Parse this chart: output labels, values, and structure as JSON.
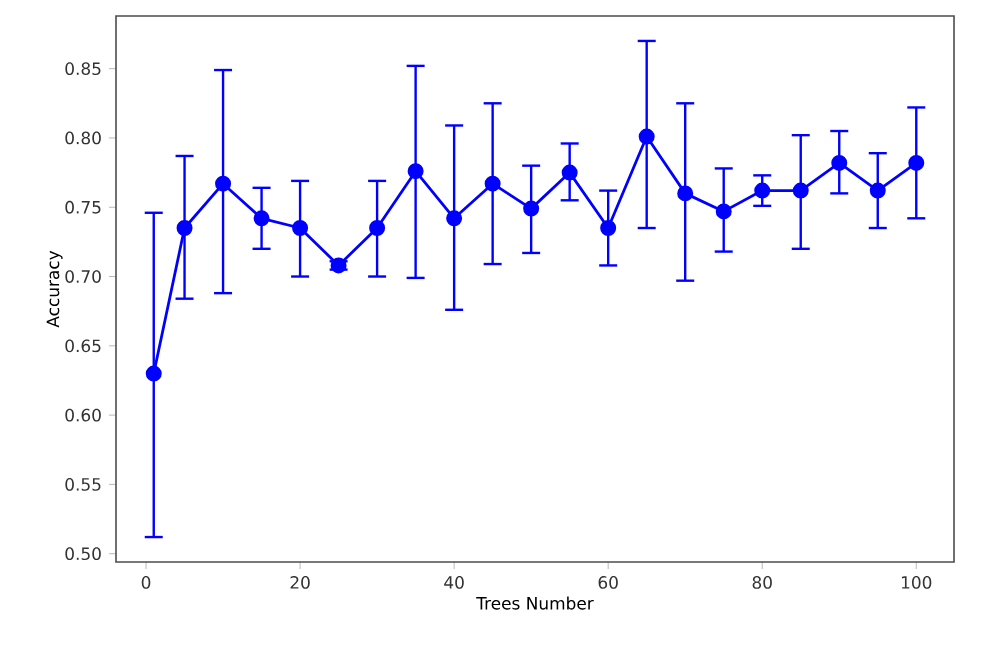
{
  "chart_data": {
    "type": "line",
    "xlabel": "Trees Number",
    "ylabel": "Accuracy",
    "x": [
      1,
      5,
      10,
      15,
      20,
      25,
      30,
      35,
      40,
      45,
      50,
      55,
      60,
      65,
      70,
      75,
      80,
      85,
      90,
      95,
      100
    ],
    "series": [
      {
        "color": "#0000ff",
        "values": [
          0.63,
          0.735,
          0.767,
          0.742,
          0.735,
          0.708,
          0.735,
          0.776,
          0.742,
          0.767,
          0.749,
          0.775,
          0.735,
          0.801,
          0.76,
          0.747,
          0.762,
          0.762,
          0.782,
          0.762,
          0.782
        ],
        "errors": [
          [
            0.512,
            0.746
          ],
          [
            0.684,
            0.787
          ],
          [
            0.688,
            0.849
          ],
          [
            0.72,
            0.764
          ],
          [
            0.7,
            0.769
          ],
          [
            0.705,
            0.711
          ],
          [
            0.7,
            0.769
          ],
          [
            0.699,
            0.852
          ],
          [
            0.676,
            0.809
          ],
          [
            0.709,
            0.825
          ],
          [
            0.717,
            0.78
          ],
          [
            0.755,
            0.796
          ],
          [
            0.708,
            0.762
          ],
          [
            0.735,
            0.87
          ],
          [
            0.697,
            0.825
          ],
          [
            0.718,
            0.778
          ],
          [
            0.751,
            0.773
          ],
          [
            0.72,
            0.802
          ],
          [
            0.76,
            0.805
          ],
          [
            0.735,
            0.789
          ],
          [
            0.742,
            0.822
          ]
        ]
      }
    ],
    "xlim": [
      -3.9,
      104.9
    ],
    "ylim": [
      0.494,
      0.888
    ],
    "xticks": [
      0,
      20,
      40,
      60,
      80,
      100
    ],
    "yticks": [
      {
        "value": 0.5,
        "label": "0.50"
      },
      0.55,
      {
        "value": 0.6,
        "label": "0.60"
      },
      0.65,
      {
        "value": 0.7,
        "label": "0.70"
      },
      0.75,
      {
        "value": 0.8,
        "label": "0.80"
      },
      0.85
    ],
    "marker": "circle",
    "line_style": "solid"
  }
}
